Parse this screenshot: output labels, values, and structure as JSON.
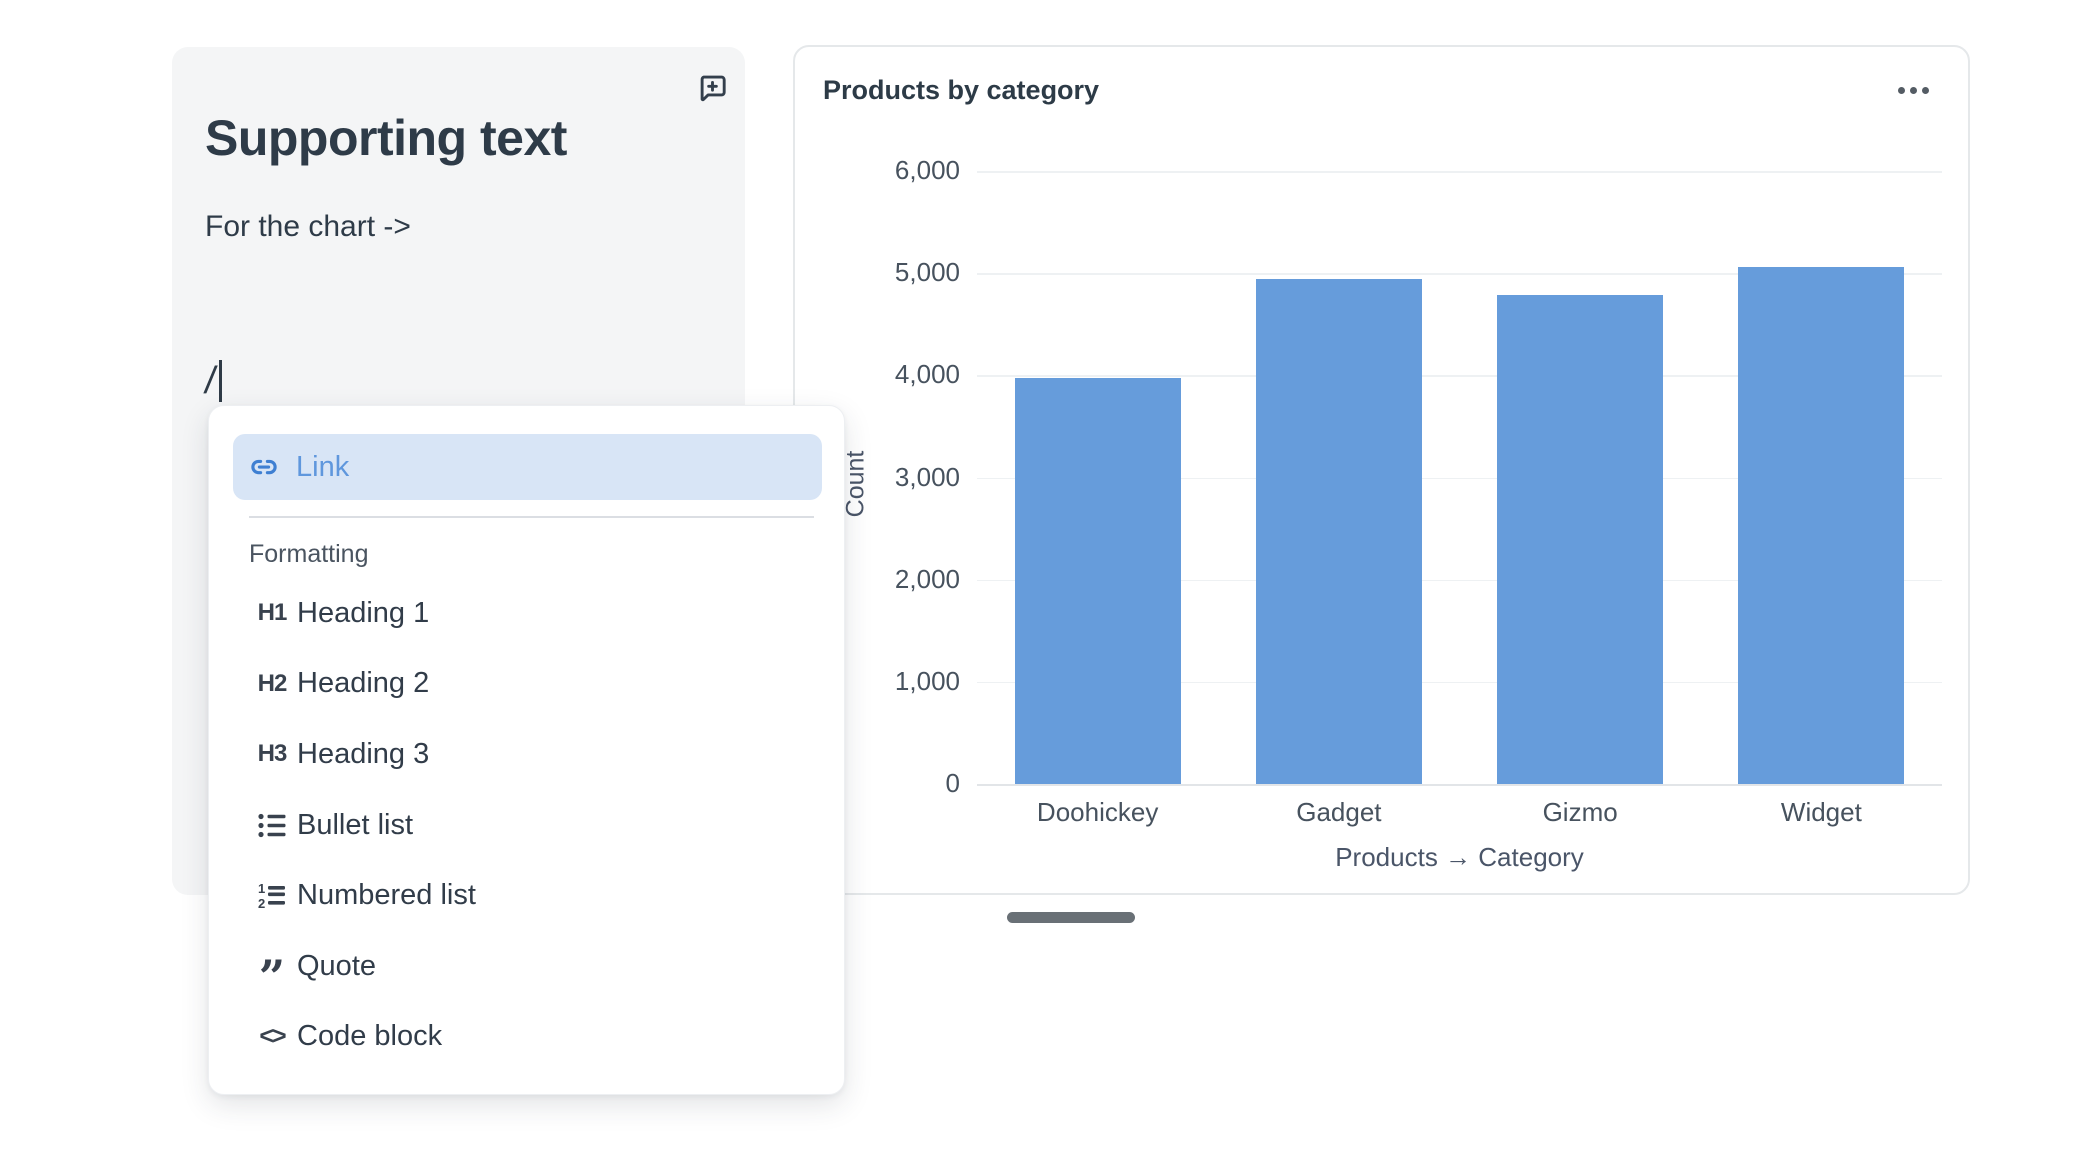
{
  "text_card": {
    "heading": "Supporting text",
    "body": "For the chart ->",
    "typed_text": "/"
  },
  "slash_menu": {
    "link_item": {
      "label": "Link"
    },
    "section_label": "Formatting",
    "items": [
      {
        "icon": "heading-1-icon",
        "glyph": "H1",
        "label": "Heading 1"
      },
      {
        "icon": "heading-2-icon",
        "glyph": "H2",
        "label": "Heading 2"
      },
      {
        "icon": "heading-3-icon",
        "glyph": "H3",
        "label": "Heading 3"
      },
      {
        "icon": "bullet-list-icon",
        "label": "Bullet list"
      },
      {
        "icon": "numbered-list-icon",
        "label": "Numbered list"
      },
      {
        "icon": "quote-icon",
        "glyph": "”",
        "label": "Quote"
      },
      {
        "icon": "code-block-icon",
        "glyph": "<>",
        "label": "Code block"
      }
    ]
  },
  "chart_card": {
    "title": "Products by category",
    "menu_icon": "ellipsis-icon"
  },
  "chart_data": {
    "type": "bar",
    "title": "Products by category",
    "categories": [
      "Doohickey",
      "Gadget",
      "Gizmo",
      "Widget"
    ],
    "values": [
      3976,
      4939,
      4784,
      5061
    ],
    "xlabel": "Products → Category",
    "ylabel": "Count",
    "ylim": [
      0,
      6000
    ],
    "ytick_step": 1000,
    "ytick_labels": [
      "0",
      "1,000",
      "2,000",
      "3,000",
      "4,000",
      "5,000",
      "6,000"
    ],
    "grid": true,
    "legend": "none",
    "bar_color": "#669CDB"
  },
  "colors": {
    "bar_blue": "#669CDB",
    "link_blue": "#5f97dd",
    "link_highlight": "#d8e5f6",
    "text_dark": "#2e3b48",
    "card_gray": "#f4f5f6",
    "pill_gray": "#697076"
  }
}
